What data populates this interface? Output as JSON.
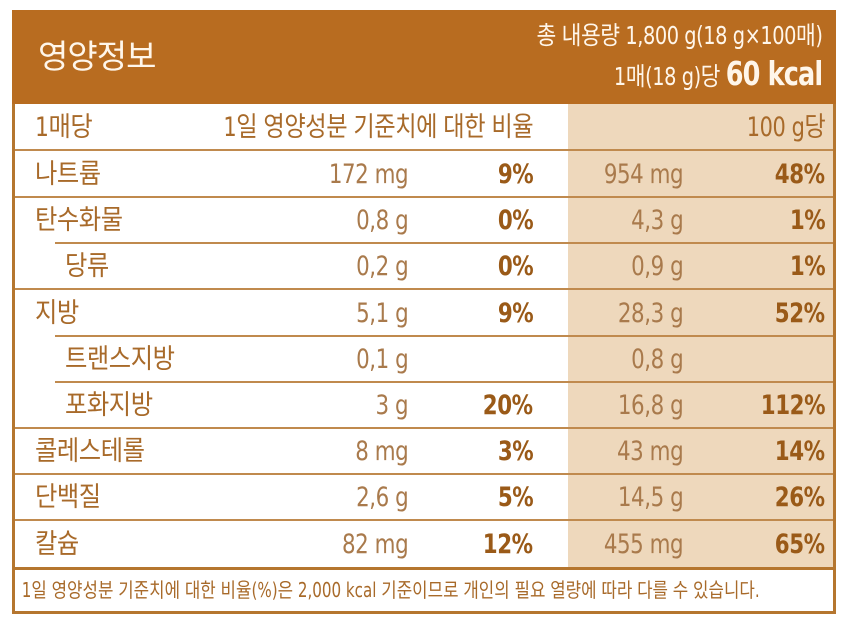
{
  "header": {
    "title": "영양정보",
    "total_content": "총 내용량 1,800 g(18 g×100매)",
    "per_serving_prefix": "1매(18 g)당",
    "calories": "60 kcal"
  },
  "columns": {
    "per_serving": "1매당",
    "daily_value_ratio": "1일 영양성분 기준치에 대한 비율",
    "per_100g": "100 g당"
  },
  "nutrients": [
    {
      "name": "나트륨",
      "sub": false,
      "amount": "172 mg",
      "pct": "9%",
      "amount_100g": "954 mg",
      "pct_100g": "48%"
    },
    {
      "name": "탄수화물",
      "sub": false,
      "amount": "0,8 g",
      "pct": "0%",
      "amount_100g": "4,3 g",
      "pct_100g": "1%"
    },
    {
      "name": "당류",
      "sub": true,
      "amount": "0,2 g",
      "pct": "0%",
      "amount_100g": "0,9 g",
      "pct_100g": "1%"
    },
    {
      "name": "지방",
      "sub": false,
      "amount": "5,1 g",
      "pct": "9%",
      "amount_100g": "28,3 g",
      "pct_100g": "52%"
    },
    {
      "name": "트랜스지방",
      "sub": true,
      "amount": "0,1 g",
      "pct": "",
      "amount_100g": "0,8 g",
      "pct_100g": ""
    },
    {
      "name": "포화지방",
      "sub": true,
      "amount": "3 g",
      "pct": "20%",
      "amount_100g": "16,8 g",
      "pct_100g": "112%"
    },
    {
      "name": "콜레스테롤",
      "sub": false,
      "amount": "8 mg",
      "pct": "3%",
      "amount_100g": "43 mg",
      "pct_100g": "14%"
    },
    {
      "name": "단백질",
      "sub": false,
      "amount": "2,6 g",
      "pct": "5%",
      "amount_100g": "14,5 g",
      "pct_100g": "26%"
    },
    {
      "name": "칼슘",
      "sub": false,
      "amount": "82 mg",
      "pct": "12%",
      "amount_100g": "455 mg",
      "pct_100g": "65%"
    }
  ],
  "footnote": "1일 영양성분 기준치에 대한 비율(%)은 2,000 kcal 기준이므로 개인의 필요 열량에 따라 다를 수 있습니다.",
  "colors": {
    "header_bg": "#B86C20",
    "header_text": "#FFF6EA",
    "border": "#B5762F",
    "shade": "#EED8BC",
    "text": "#A86A2A",
    "pct_text": "#9A5A18"
  }
}
